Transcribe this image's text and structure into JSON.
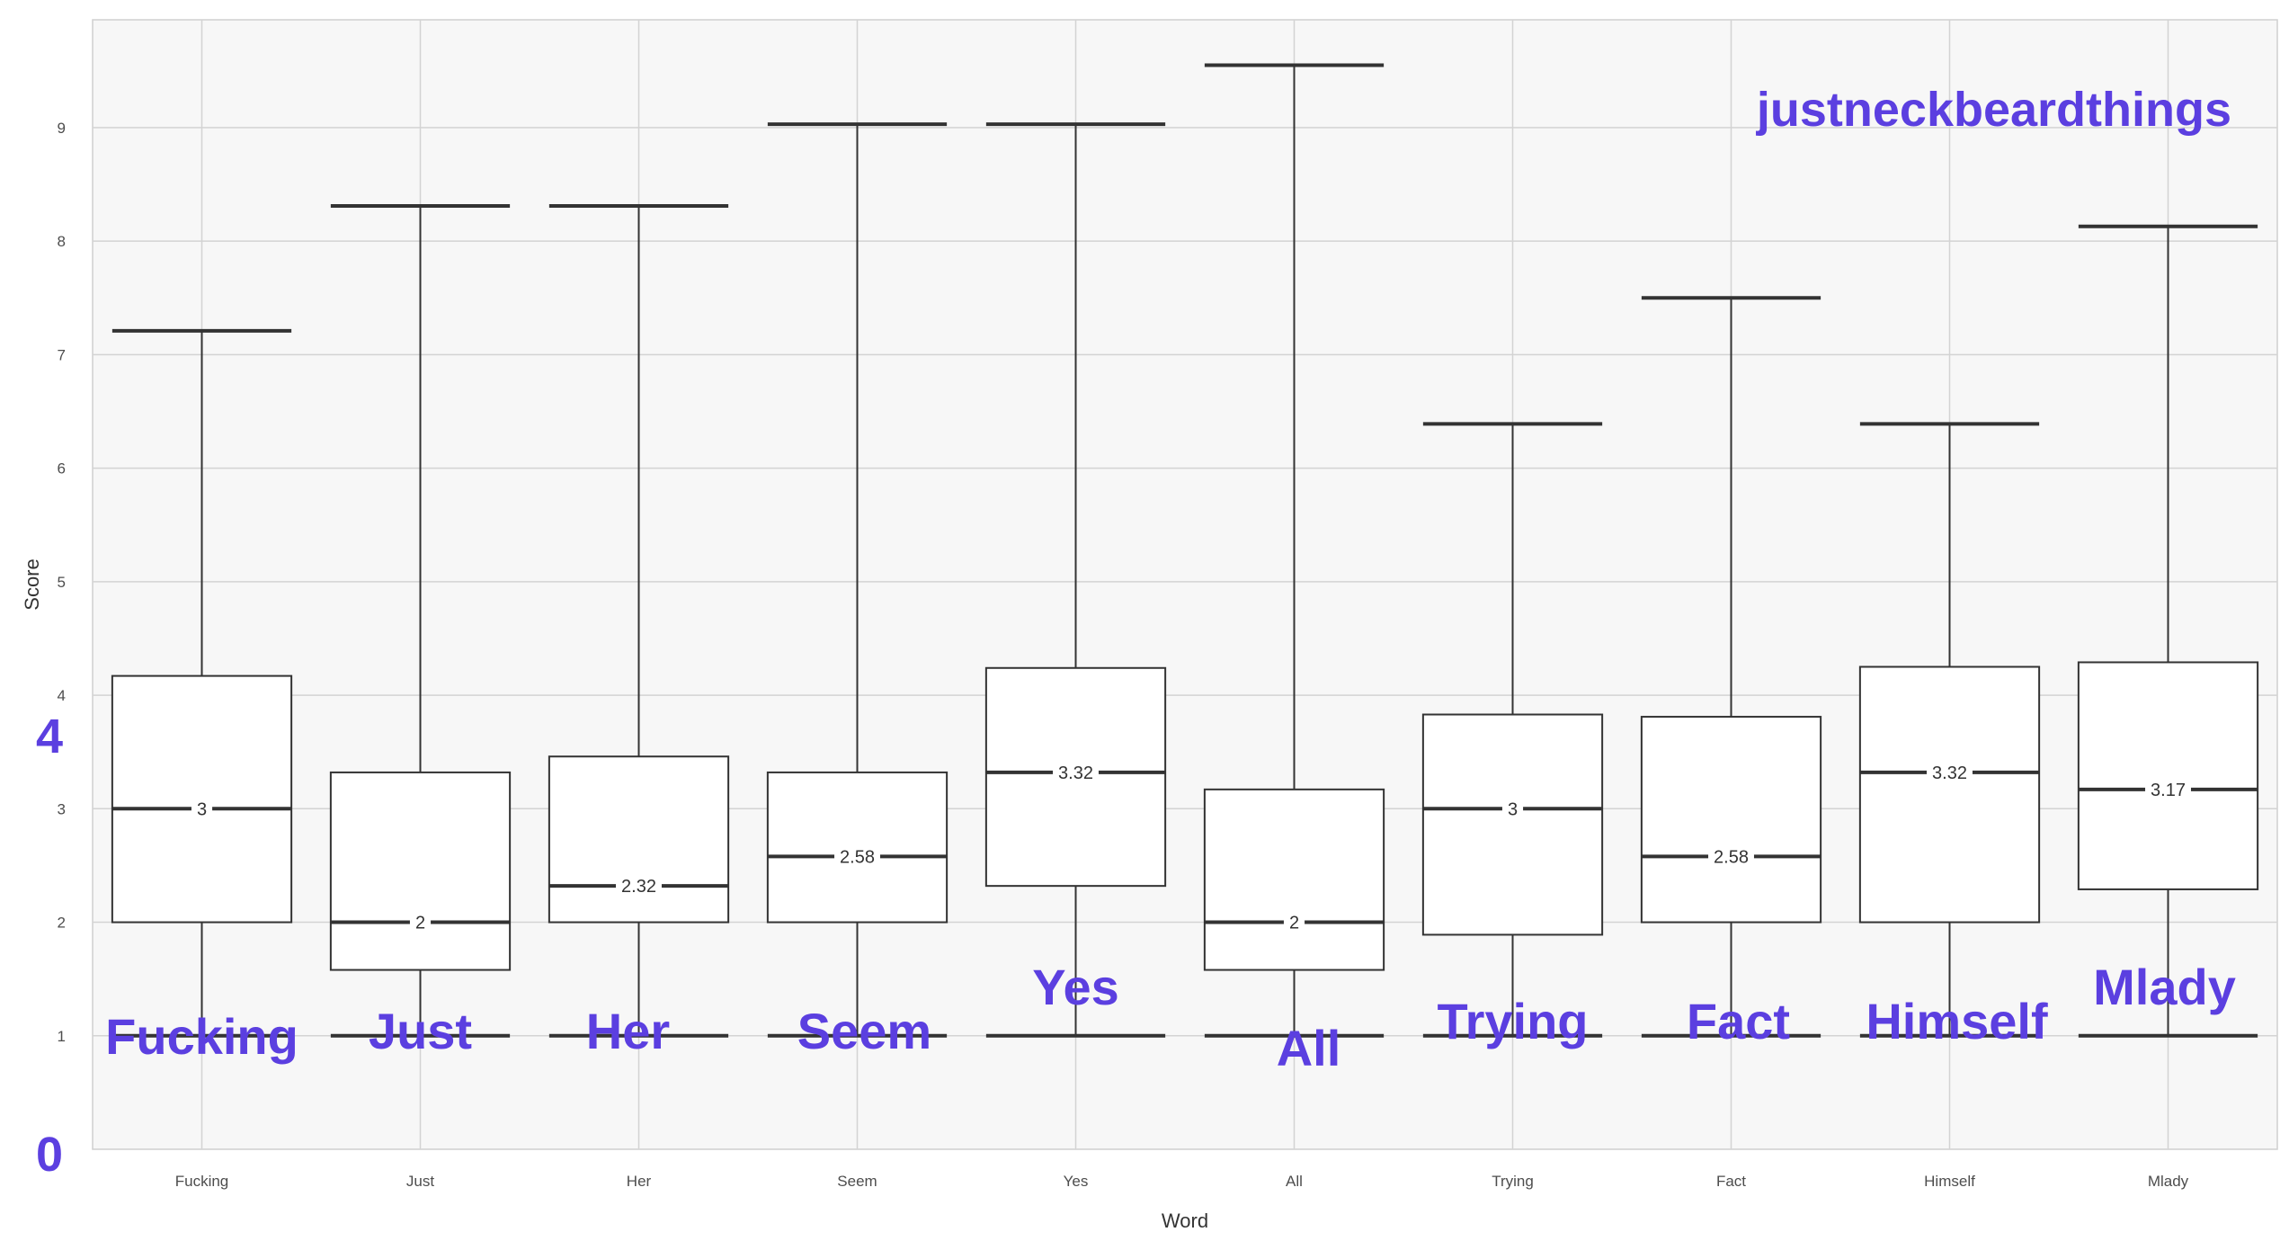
{
  "chart_data": {
    "type": "boxplot",
    "xlabel": "Word",
    "ylabel": "Score",
    "ylim": [
      0,
      9.95
    ],
    "yticks": [
      1,
      2,
      3,
      4,
      5,
      6,
      7,
      8,
      9
    ],
    "big_ticks": [
      "4",
      "0"
    ],
    "tag": "justneckbeardthings",
    "grid": true,
    "categories": [
      "Fucking",
      "Just",
      "Her",
      "Seem",
      "Yes",
      "All",
      "Trying",
      "Fact",
      "Himself",
      "Mlady"
    ],
    "boxes": [
      {
        "word": "Fucking",
        "min": 1,
        "q1": 2.0,
        "median": 3.0,
        "q3": 4.17,
        "max": 7.21,
        "median_label": "3",
        "overlay": "Fucking"
      },
      {
        "word": "Just",
        "min": 1,
        "q1": 1.58,
        "median": 2.0,
        "q3": 3.32,
        "max": 8.31,
        "median_label": "2",
        "overlay": "Just"
      },
      {
        "word": "Her",
        "min": 1,
        "q1": 2.0,
        "median": 2.32,
        "q3": 3.46,
        "max": 8.31,
        "median_label": "2.32",
        "overlay": "Her"
      },
      {
        "word": "Seem",
        "min": 1,
        "q1": 2.0,
        "median": 2.58,
        "q3": 3.32,
        "max": 9.03,
        "median_label": "2.58",
        "overlay": "Seem"
      },
      {
        "word": "Yes",
        "min": 1,
        "q1": 2.32,
        "median": 3.32,
        "q3": 4.24,
        "max": 9.03,
        "median_label": "3.32",
        "overlay": "Yes"
      },
      {
        "word": "All",
        "min": 1,
        "q1": 1.58,
        "median": 2.0,
        "q3": 3.17,
        "max": 9.55,
        "median_label": "2",
        "overlay": "All"
      },
      {
        "word": "Trying",
        "min": 1,
        "q1": 1.89,
        "median": 3.0,
        "q3": 3.83,
        "max": 6.39,
        "median_label": "3",
        "overlay": "Trying"
      },
      {
        "word": "Fact",
        "min": 1,
        "q1": 2.0,
        "median": 2.58,
        "q3": 3.81,
        "max": 7.5,
        "median_label": "2.58",
        "overlay": "Fact"
      },
      {
        "word": "Himself",
        "min": 1,
        "q1": 2.0,
        "median": 3.32,
        "q3": 4.25,
        "max": 6.39,
        "median_label": "3.32",
        "overlay": "Himself"
      },
      {
        "word": "Mlady",
        "min": 1,
        "q1": 2.29,
        "median": 3.17,
        "q3": 4.29,
        "max": 8.13,
        "median_label": "3.17",
        "overlay": "Mlady"
      }
    ],
    "colors": {
      "panel_bg": "#f7f7f7",
      "grid": "#d3d3d3",
      "box_fill": "#ffffff",
      "line": "#333333",
      "accent": "#5b3fe0"
    }
  }
}
